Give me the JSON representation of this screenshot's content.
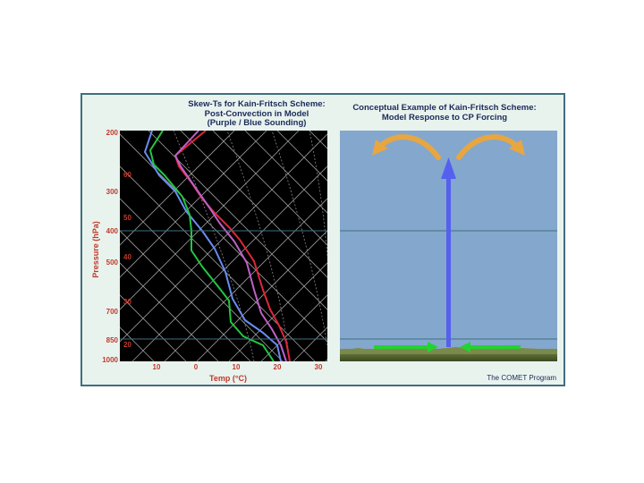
{
  "left_panel": {
    "title": [
      "Skew-Ts for Kain-Fritsch Scheme:",
      "Post-Convection in Model",
      "(Purple / Blue Sounding)"
    ],
    "y_axis_title": "Pressure (hPa)",
    "x_axis_title": "Temp (°C)",
    "pressure_labels": [
      "200",
      "300",
      "400",
      "500",
      "700",
      "850",
      "1000"
    ],
    "temp_labels": [
      "10",
      "0",
      "10",
      "20",
      "30"
    ],
    "isotherm_labels": [
      "60",
      "50",
      "40",
      "30",
      "20"
    ]
  },
  "right_panel": {
    "title": [
      "Conceptual Example of Kain-Fritsch Scheme:",
      "Model Response to CP Forcing"
    ]
  },
  "credit": "The COMET Program",
  "colors": {
    "accent_red": "#c0392b",
    "title_navy": "#1a2a5a",
    "sky": "#84a7cd",
    "updraft": "#5560f0",
    "outflow": "#e8a640",
    "inflow": "#22d430"
  }
}
